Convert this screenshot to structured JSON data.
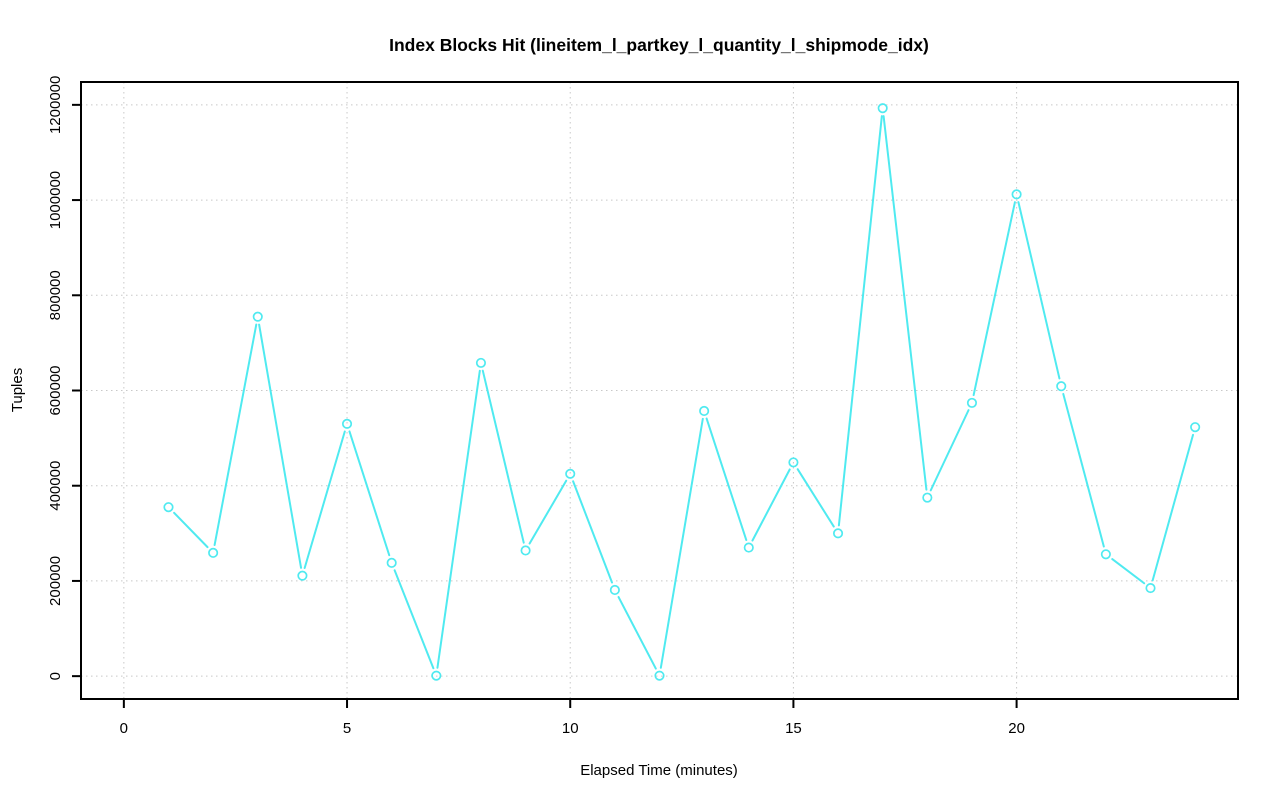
{
  "figure": {
    "background_color": "#ffffff"
  },
  "chart_data": {
    "type": "line",
    "title": "Index Blocks Hit (lineitem_l_partkey_l_quantity_l_shipmode_idx)",
    "xlabel": "Elapsed Time (minutes)",
    "ylabel": "Tuples",
    "x": [
      1,
      2,
      3,
      4,
      5,
      6,
      7,
      8,
      9,
      10,
      11,
      12,
      13,
      14,
      15,
      16,
      17,
      18,
      19,
      20,
      21,
      22,
      23,
      24
    ],
    "values": [
      355000,
      259000,
      755000,
      211000,
      530000,
      238000,
      1000,
      658000,
      264000,
      425000,
      181000,
      1000,
      557000,
      270000,
      449000,
      300000,
      1193000,
      375000,
      574000,
      1012000,
      609000,
      256000,
      185000,
      523000
    ],
    "x_ticks": [
      0,
      5,
      10,
      15,
      20
    ],
    "y_ticks": [
      0,
      200000,
      400000,
      600000,
      800000,
      1000000,
      1200000
    ],
    "xlim": [
      -0.96,
      24.96
    ],
    "ylim": [
      -48000,
      1248000
    ],
    "grid": true,
    "grid_style": "dotted",
    "legend_position": "none",
    "marker": "open-circle",
    "line_color": "#4FEAF0",
    "grid_color": "#C8C8C8",
    "axis_color": "#000000"
  }
}
